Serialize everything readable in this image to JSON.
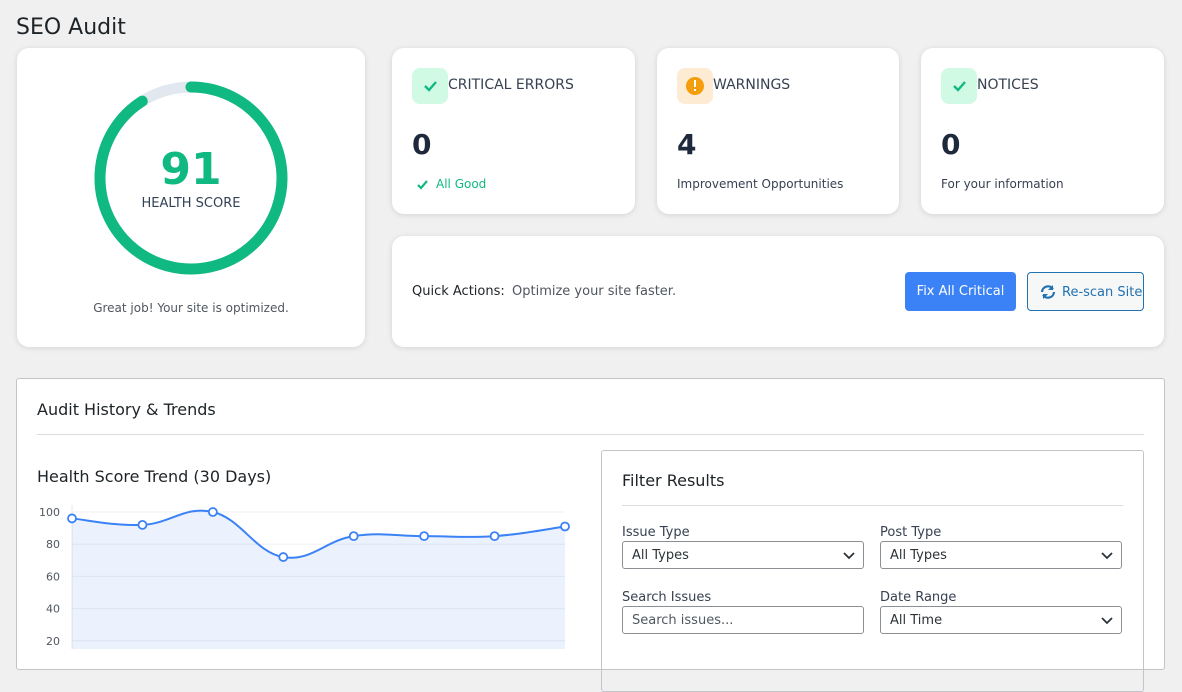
{
  "header": {
    "title": "SEO Audit"
  },
  "health": {
    "score": 91,
    "label": "HEALTH SCORE",
    "message": "Great job! Your site is optimized."
  },
  "stats": [
    {
      "title": "CRITICAL ERRORS",
      "value": 0,
      "note": "All Good"
    },
    {
      "title": "WARNINGS",
      "value": 4,
      "note": "Improvement Opportunities"
    },
    {
      "title": "NOTICES",
      "value": 0,
      "note": "For your information"
    }
  ],
  "quick_actions": {
    "label": "Quick Actions:",
    "text": "Optimize your site faster.",
    "buttons": [
      "Fix All Critical",
      "Re-scan Site"
    ]
  },
  "history": {
    "title": "Audit History & Trends"
  },
  "chart_data": {
    "type": "line",
    "title": "Health Score Trend (30 Days)",
    "values": [
      96,
      92,
      100,
      72,
      85,
      85,
      85,
      91
    ],
    "color": "#3b82f6",
    "ylim": [
      0,
      100
    ],
    "yticks": [
      20,
      40,
      60,
      80,
      100
    ],
    "grid": true
  },
  "filters": {
    "title": "Filter Results",
    "fields": [
      {
        "label": "Issue Type",
        "value": "All Types"
      },
      {
        "label": "Post Type",
        "value": "All Types"
      },
      {
        "label": "Search Issues",
        "placeholder": "Search issues..."
      },
      {
        "label": "Date Range",
        "value": "All Time"
      }
    ]
  }
}
